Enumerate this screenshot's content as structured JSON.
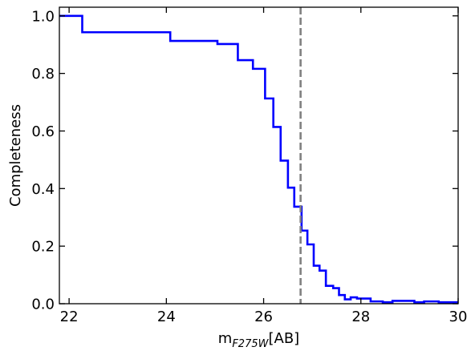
{
  "chart_data": {
    "type": "line",
    "title": "",
    "xlabel": {
      "main": "m",
      "subscript": "F275W",
      "suffix": "[AB]"
    },
    "ylabel": "Completeness",
    "xlim": [
      21.8,
      30
    ],
    "ylim": [
      0.0,
      1.03
    ],
    "x_ticks": [
      22,
      24,
      26,
      28,
      30
    ],
    "x_tick_labels": [
      "22",
      "24",
      "26",
      "28",
      "30"
    ],
    "y_ticks": [
      0.0,
      0.2,
      0.4,
      0.6,
      0.8,
      1.0
    ],
    "y_tick_labels": [
      "0.0",
      "0.2",
      "0.4",
      "0.6",
      "0.8",
      "1.0"
    ],
    "grid": false,
    "series": [
      {
        "style": "step",
        "color": "#0000ff",
        "x": [
          21.8,
          22.27,
          24.08,
          25.05,
          25.47,
          25.78,
          26.03,
          26.2,
          26.35,
          26.5,
          26.63,
          26.78,
          26.9,
          27.03,
          27.15,
          27.28,
          27.43,
          27.55,
          27.67,
          27.79,
          27.92,
          28.2,
          28.45,
          28.65,
          29.1,
          29.3,
          29.6,
          30.0
        ],
        "y": [
          1.0,
          0.943,
          0.913,
          0.902,
          0.846,
          0.816,
          0.713,
          0.614,
          0.497,
          0.403,
          0.337,
          0.254,
          0.206,
          0.132,
          0.115,
          0.062,
          0.054,
          0.03,
          0.015,
          0.022,
          0.018,
          0.008,
          0.005,
          0.01,
          0.005,
          0.008,
          0.005,
          0.005
        ]
      }
    ],
    "reference_line": {
      "orientation": "vertical",
      "x": 26.76,
      "color": "#808080",
      "style": "dashed"
    }
  }
}
